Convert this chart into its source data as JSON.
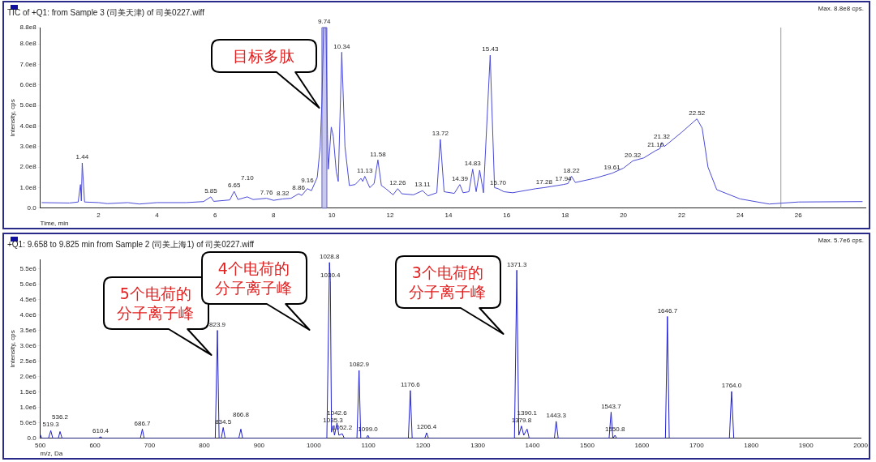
{
  "chart_data": [
    {
      "type": "line",
      "title": "TIC of +Q1: from Sample 3 (司美天津) of 司美0227.wiff",
      "xlabel": "Time, min",
      "ylabel": "Intensity, cps",
      "xlim": [
        0,
        28.3
      ],
      "xticks": [
        2,
        4,
        6,
        8,
        10,
        12,
        14,
        16,
        18,
        20,
        22,
        24,
        26
      ],
      "ylim": [
        0,
        880000000.0
      ],
      "yticks": [
        {
          "value": 0,
          "label": "0.0"
        },
        {
          "value": 100000000.0,
          "label": "1.0e8"
        },
        {
          "value": 200000000.0,
          "label": "2.0e8"
        },
        {
          "value": 300000000.0,
          "label": "3.0e8"
        },
        {
          "value": 400000000.0,
          "label": "4.0e8"
        },
        {
          "value": 500000000.0,
          "label": "5.0e8"
        },
        {
          "value": 600000000.0,
          "label": "6.0e8"
        },
        {
          "value": 700000000.0,
          "label": "7.0e8"
        },
        {
          "value": 800000000.0,
          "label": "8.0e8"
        },
        {
          "value": 880000000.0,
          "label": "8.8e8"
        }
      ],
      "grid": false,
      "legend": false,
      "marker": "none",
      "line_style": "solid",
      "series": [
        {
          "color": "#4a4ad8",
          "x": [
            0.05,
            1.0,
            1.3,
            1.38,
            1.41,
            1.44,
            1.52,
            2.0,
            2.3,
            3.0,
            3.4,
            4.0,
            5.0,
            5.6,
            5.85,
            5.95,
            6.5,
            6.65,
            6.78,
            7.1,
            7.3,
            7.76,
            8.0,
            8.32,
            8.6,
            8.86,
            8.97,
            9.16,
            9.3,
            9.5,
            9.6,
            9.66,
            9.72,
            9.74,
            9.8,
            9.85,
            9.88,
            9.98,
            10.05,
            10.15,
            10.22,
            10.34,
            10.45,
            10.6,
            10.8,
            11.0,
            11.06,
            11.13,
            11.3,
            11.45,
            11.58,
            11.7,
            11.85,
            12.1,
            12.26,
            12.4,
            12.8,
            13.11,
            13.3,
            13.6,
            13.72,
            13.85,
            14.2,
            14.39,
            14.5,
            14.7,
            14.83,
            14.95,
            15.07,
            15.2,
            15.43,
            15.58,
            15.7,
            15.9,
            16.2,
            17.0,
            17.28,
            17.94,
            18.1,
            18.22,
            18.35,
            19.0,
            19.61,
            20.0,
            20.32,
            20.7,
            21.1,
            21.25,
            21.32,
            21.4,
            22.0,
            22.52,
            22.7,
            22.9,
            23.2,
            24.0,
            25.0,
            26.0,
            28.2
          ],
          "values": [
            27000000.0,
            25000000.0,
            30000000.0,
            115000000.0,
            35000000.0,
            220000000.0,
            30000000.0,
            27000000.0,
            22000000.0,
            27000000.0,
            20000000.0,
            27000000.0,
            27000000.0,
            32000000.0,
            55000000.0,
            33000000.0,
            40000000.0,
            82000000.0,
            42000000.0,
            55000000.0,
            42000000.0,
            48000000.0,
            38000000.0,
            45000000.0,
            48000000.0,
            70000000.0,
            62000000.0,
            95000000.0,
            85000000.0,
            150000000.0,
            300000000.0,
            520000000.0,
            880000000.0,
            880000000.0,
            880000000.0,
            360000000.0,
            190000000.0,
            395000000.0,
            350000000.0,
            180000000.0,
            130000000.0,
            760000000.0,
            300000000.0,
            110000000.0,
            115000000.0,
            145000000.0,
            130000000.0,
            155000000.0,
            100000000.0,
            120000000.0,
            235000000.0,
            110000000.0,
            95000000.0,
            65000000.0,
            95000000.0,
            70000000.0,
            65000000.0,
            85000000.0,
            60000000.0,
            75000000.0,
            335000000.0,
            80000000.0,
            72000000.0,
            115000000.0,
            75000000.0,
            80000000.0,
            190000000.0,
            80000000.0,
            185000000.0,
            75000000.0,
            745000000.0,
            100000000.0,
            95000000.0,
            80000000.0,
            75000000.0,
            95000000.0,
            100000000.0,
            115000000.0,
            120000000.0,
            155000000.0,
            125000000.0,
            145000000.0,
            170000000.0,
            195000000.0,
            230000000.0,
            245000000.0,
            280000000.0,
            290000000.0,
            320000000.0,
            300000000.0,
            370000000.0,
            435000000.0,
            390000000.0,
            200000000.0,
            90000000.0,
            45000000.0,
            20000000.0,
            30000000.0,
            32000000.0
          ]
        }
      ],
      "ref_lines": [
        {
          "axis": "x",
          "value": 25.4,
          "color": "#999999"
        }
      ],
      "bands": [
        {
          "axis": "x",
          "from": 9.66,
          "to": 9.83,
          "color": "#c8c8f0"
        }
      ],
      "annotations": [
        "Max. 8.8e8 cps.",
        "目标多肽",
        {
          "text": "1.44",
          "x": 1.44,
          "y": 220000000.0
        },
        {
          "text": "5.85",
          "x": 5.85,
          "y": 55000000.0
        },
        {
          "text": "6.65",
          "x": 6.65,
          "y": 82000000.0
        },
        {
          "text": "7.10",
          "x": 7.1,
          "y": 55000000.0
        },
        {
          "text": "7.76",
          "x": 7.76,
          "y": 48000000.0
        },
        {
          "text": "8.32",
          "x": 8.32,
          "y": 45000000.0
        },
        {
          "text": "8.86",
          "x": 8.86,
          "y": 70000000.0
        },
        {
          "text": "9.16",
          "x": 9.16,
          "y": 95000000.0
        },
        {
          "text": "9.74",
          "x": 9.74,
          "y": 880000000.0
        },
        {
          "text": "10.34",
          "x": 10.34,
          "y": 760000000.0
        },
        {
          "text": "11.13",
          "x": 11.13,
          "y": 155000000.0
        },
        {
          "text": "11.58",
          "x": 11.58,
          "y": 235000000.0
        },
        {
          "text": "12.26",
          "x": 12.26,
          "y": 95000000.0
        },
        {
          "text": "13.11",
          "x": 13.11,
          "y": 85000000.0
        },
        {
          "text": "13.72",
          "x": 13.72,
          "y": 335000000.0
        },
        {
          "text": "14.39",
          "x": 14.39,
          "y": 115000000.0
        },
        {
          "text": "14.83",
          "x": 14.83,
          "y": 190000000.0
        },
        {
          "text": "15.43",
          "x": 15.43,
          "y": 745000000.0
        },
        {
          "text": "15.70",
          "x": 15.7,
          "y": 95000000.0
        },
        {
          "text": "17.28",
          "x": 17.28,
          "y": 100000000.0
        },
        {
          "text": "17.94",
          "x": 17.94,
          "y": 115000000.0
        },
        {
          "text": "18.22",
          "x": 18.22,
          "y": 155000000.0
        },
        {
          "text": "19.61",
          "x": 19.61,
          "y": 170000000.0
        },
        {
          "text": "20.32",
          "x": 20.32,
          "y": 230000000.0
        },
        {
          "text": "21.10",
          "x": 21.1,
          "y": 280000000.0
        },
        {
          "text": "21.32",
          "x": 21.32,
          "y": 320000000.0
        },
        {
          "text": "22.52",
          "x": 22.52,
          "y": 435000000.0
        }
      ]
    },
    {
      "type": "line",
      "title": "+Q1: 9.658 to 9.825 min from Sample 2 (司美上海1) of 司美0227.wiff",
      "xlabel": "m/z, Da",
      "ylabel": "Intensity, cps",
      "xlim": [
        500,
        2000
      ],
      "xticks": [
        500,
        600,
        700,
        800,
        900,
        1000,
        1100,
        1200,
        1300,
        1400,
        1500,
        1600,
        1700,
        1800,
        1900,
        2000
      ],
      "ylim": [
        0,
        5800000.0
      ],
      "yticks": [
        {
          "value": 0,
          "label": "0.0"
        },
        {
          "value": 500000.0,
          "label": "5.0e5"
        },
        {
          "value": 1000000.0,
          "label": "1.0e6"
        },
        {
          "value": 1500000.0,
          "label": "1.5e6"
        },
        {
          "value": 2000000.0,
          "label": "2.0e6"
        },
        {
          "value": 2500000.0,
          "label": "2.5e6"
        },
        {
          "value": 3000000.0,
          "label": "3.0e6"
        },
        {
          "value": 3500000.0,
          "label": "3.5e6"
        },
        {
          "value": 4000000.0,
          "label": "4.0e6"
        },
        {
          "value": 4500000.0,
          "label": "4.5e6"
        },
        {
          "value": 5000000.0,
          "label": "5.0e6"
        },
        {
          "value": 5500000.0,
          "label": "5.5e6"
        }
      ],
      "grid": false,
      "legend": false,
      "marker": "none",
      "line_style": "solid",
      "series": [
        {
          "color": "#2020d0",
          "x": [
            500,
            503,
            515,
            519.3,
            523,
            533,
            536.2,
            540,
            606,
            610.4,
            614,
            683,
            686.7,
            690,
            820,
            823.9,
            827,
            831,
            834.5,
            838,
            863,
            866.8,
            870,
            1024,
            1028.8,
            1030.4,
            1032.5,
            1035.3,
            1038,
            1042.6,
            1046,
            1052.2,
            1056,
            1079,
            1082.9,
            1086,
            1096,
            1099.0,
            1102,
            1173,
            1176.6,
            1180,
            1203,
            1206.4,
            1210,
            1367,
            1371.3,
            1375,
            1379.8,
            1384,
            1390.1,
            1394,
            1440,
            1443.3,
            1447,
            1540,
            1543.7,
            1547,
            1550.8,
            1554,
            1643,
            1646.7,
            1650,
            1760,
            1764.0,
            1768
          ],
          "values": [
            120000.0,
            0,
            0,
            250000.0,
            0,
            0,
            220000.0,
            0,
            0,
            50000.0,
            0,
            0,
            300000.0,
            0,
            0,
            3500000.0,
            0,
            0,
            350000.0,
            0,
            0,
            300000.0,
            0,
            0,
            5700000.0,
            5100000.0,
            200000.0,
            400000.0,
            100000.0,
            500000.0,
            100000.0,
            150000.0,
            0,
            0,
            2200000.0,
            0,
            0,
            100000.0,
            0,
            0,
            1550000.0,
            0,
            0,
            180000.0,
            0,
            0,
            5450000.0,
            100000.0,
            400000.0,
            100000.0,
            300000.0,
            0,
            0,
            550000.0,
            0,
            0,
            850000.0,
            0,
            100000.0,
            0,
            0,
            3950000.0,
            0,
            0,
            1520000.0,
            0
          ]
        }
      ],
      "annotations": [
        "Max. 5.7e6 cps.",
        "5个电荷的分子离子峰",
        "4个电荷的分子离子峰",
        "3个电荷的分子离子峰",
        {
          "text": "519.3",
          "x": 519.3,
          "y": 250000.0
        },
        {
          "text": "536.2",
          "x": 536.2,
          "y": 220000.0
        },
        {
          "text": "610.4",
          "x": 610.4,
          "y": 50000.0
        },
        {
          "text": "686.7",
          "x": 686.7,
          "y": 300000.0
        },
        {
          "text": "823.9",
          "x": 823.9,
          "y": 3500000.0
        },
        {
          "text": "834.5",
          "x": 834.5,
          "y": 350000.0
        },
        {
          "text": "866.8",
          "x": 866.8,
          "y": 300000.0
        },
        {
          "text": "1028.8",
          "x": 1028.8,
          "y": 5700000.0
        },
        {
          "text": "1030.4",
          "x": 1030.4,
          "y": 5100000.0
        },
        {
          "text": "1035.3",
          "x": 1035.3,
          "y": 400000.0
        },
        {
          "text": "1042.6",
          "x": 1042.6,
          "y": 500000.0
        },
        {
          "text": "1052.2",
          "x": 1052.2,
          "y": 150000.0
        },
        {
          "text": "1082.9",
          "x": 1082.9,
          "y": 2200000.0
        },
        {
          "text": "1099.0",
          "x": 1099.0,
          "y": 100000.0
        },
        {
          "text": "1176.6",
          "x": 1176.6,
          "y": 1550000.0
        },
        {
          "text": "1206.4",
          "x": 1206.4,
          "y": 180000.0
        },
        {
          "text": "1371.3",
          "x": 1371.3,
          "y": 5450000.0
        },
        {
          "text": "1379.8",
          "x": 1379.8,
          "y": 400000.0
        },
        {
          "text": "1390.1",
          "x": 1390.1,
          "y": 300000.0
        },
        {
          "text": "1443.3",
          "x": 1443.3,
          "y": 550000.0
        },
        {
          "text": "1543.7",
          "x": 1543.7,
          "y": 850000.0
        },
        {
          "text": "1550.8",
          "x": 1550.8,
          "y": 100000.0
        },
        {
          "text": "1646.7",
          "x": 1646.7,
          "y": 3950000.0
        },
        {
          "text": "1764.0",
          "x": 1764.0,
          "y": 1520000.0
        }
      ]
    }
  ]
}
